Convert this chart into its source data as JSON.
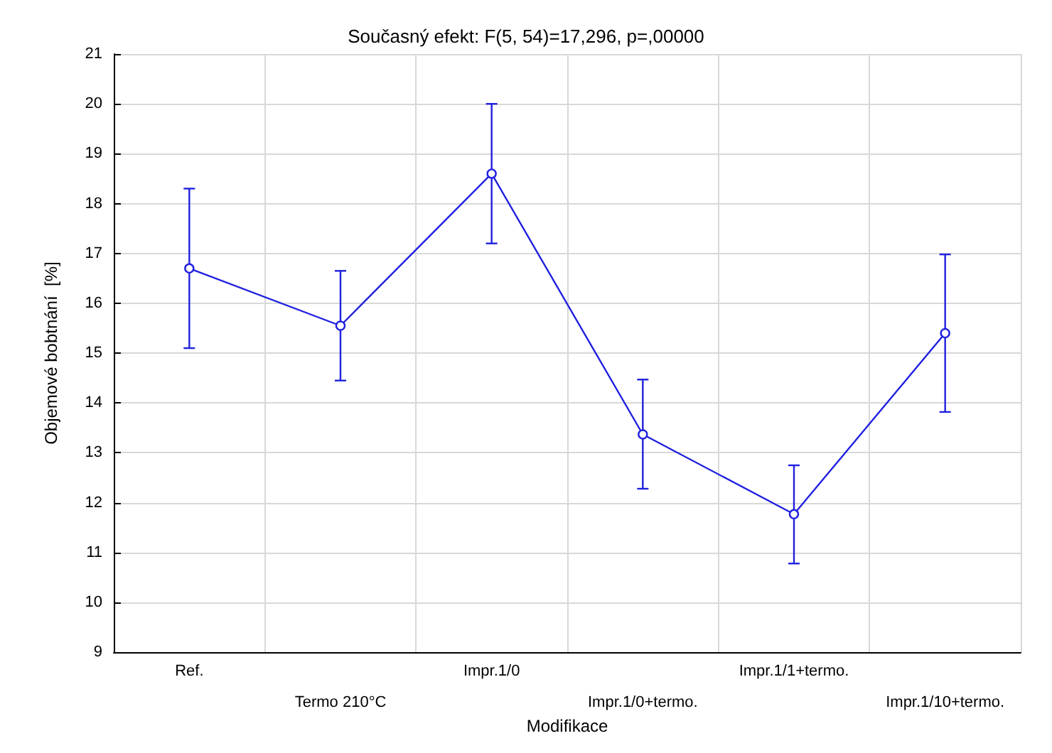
{
  "chart_data": {
    "type": "line",
    "title": "Současný efekt: F(5, 54)=17,296, p=,00000",
    "xlabel": "Modifikace",
    "ylabel": "Objemové bobtnání  [%]",
    "categories": [
      "Ref.",
      "Termo 210°C",
      "Impr.1/0",
      "Impr.1/0+termo.",
      "Impr.1/1+termo.",
      "Impr.1/10+termo."
    ],
    "series": [
      {
        "color": "#2020e0",
        "values": [
          16.7,
          15.55,
          18.6,
          13.37,
          11.77,
          15.4
        ],
        "errors": [
          [
            15.1,
            18.3
          ],
          [
            14.45,
            16.65
          ],
          [
            17.2,
            20.0
          ],
          [
            12.28,
            14.47
          ],
          [
            10.78,
            12.75
          ],
          [
            13.82,
            16.98
          ]
        ]
      }
    ],
    "ylim": [
      9,
      21
    ],
    "yticks": [
      9,
      10,
      11,
      12,
      13,
      14,
      15,
      16,
      17,
      18,
      19,
      20,
      21
    ],
    "grid": true,
    "marker": "circle",
    "line_style": "solid"
  }
}
